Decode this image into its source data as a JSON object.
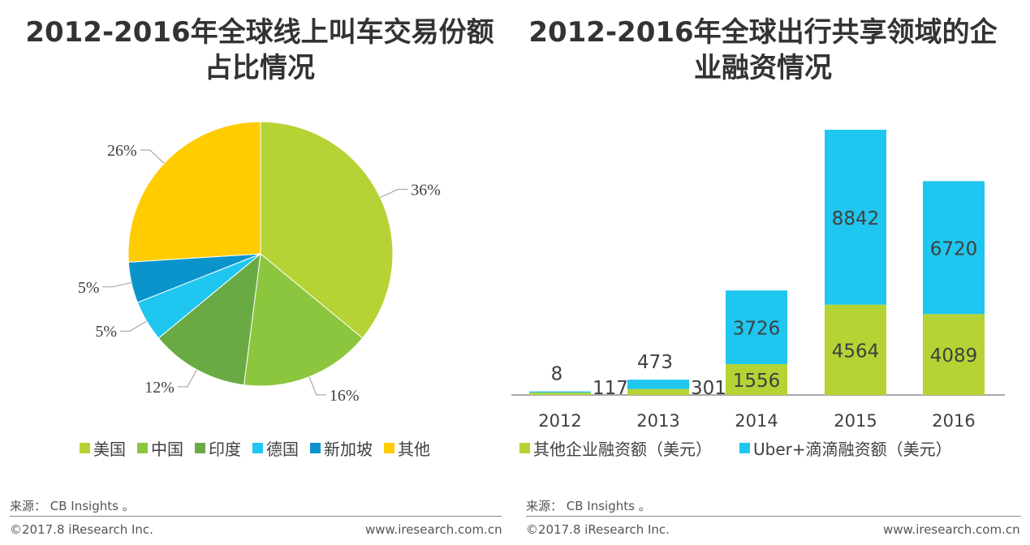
{
  "left_title": "2012-2016年全球线上叫车交易份额占比情况",
  "right_title": "2012-2016年全球出行共享领域的企业融资情况",
  "chart_data": [
    {
      "type": "pie",
      "title": "2012-2016年全球线上叫车交易份额占比情况",
      "slices": [
        {
          "name": "美国",
          "value": 36,
          "label": "36%",
          "color": "#b5d334"
        },
        {
          "name": "中国",
          "value": 16,
          "label": "16%",
          "color": "#8cc63e"
        },
        {
          "name": "印度",
          "value": 12,
          "label": "12%",
          "color": "#6aaa45"
        },
        {
          "name": "德国",
          "value": 5,
          "label": "5%",
          "color": "#1fc6ef"
        },
        {
          "name": "新加坡",
          "value": 5,
          "label": "5%",
          "color": "#0b94cc"
        },
        {
          "name": "其他",
          "value": 26,
          "label": "26%",
          "color": "#ffcc00"
        }
      ],
      "legend": "bottom"
    },
    {
      "type": "bar",
      "stacked": true,
      "title": "2012-2016年全球出行共享领域的企业融资情况",
      "categories": [
        "2012",
        "2013",
        "2014",
        "2015",
        "2016"
      ],
      "series": [
        {
          "name": "其他企业融资额（美元）",
          "values": [
            117,
            301,
            1556,
            4564,
            4089
          ],
          "color": "#b5d334"
        },
        {
          "name": "Uber+滴滴融资额（美元）",
          "values": [
            8,
            473,
            3726,
            8842,
            6720
          ],
          "color": "#1fc6ef"
        }
      ],
      "legend": "bottom",
      "grid": false
    }
  ],
  "footer": {
    "source": "来源： CB Insights 。",
    "copyright": "©2017.8 iResearch Inc.",
    "url": "www.iresearch.com.cn"
  }
}
